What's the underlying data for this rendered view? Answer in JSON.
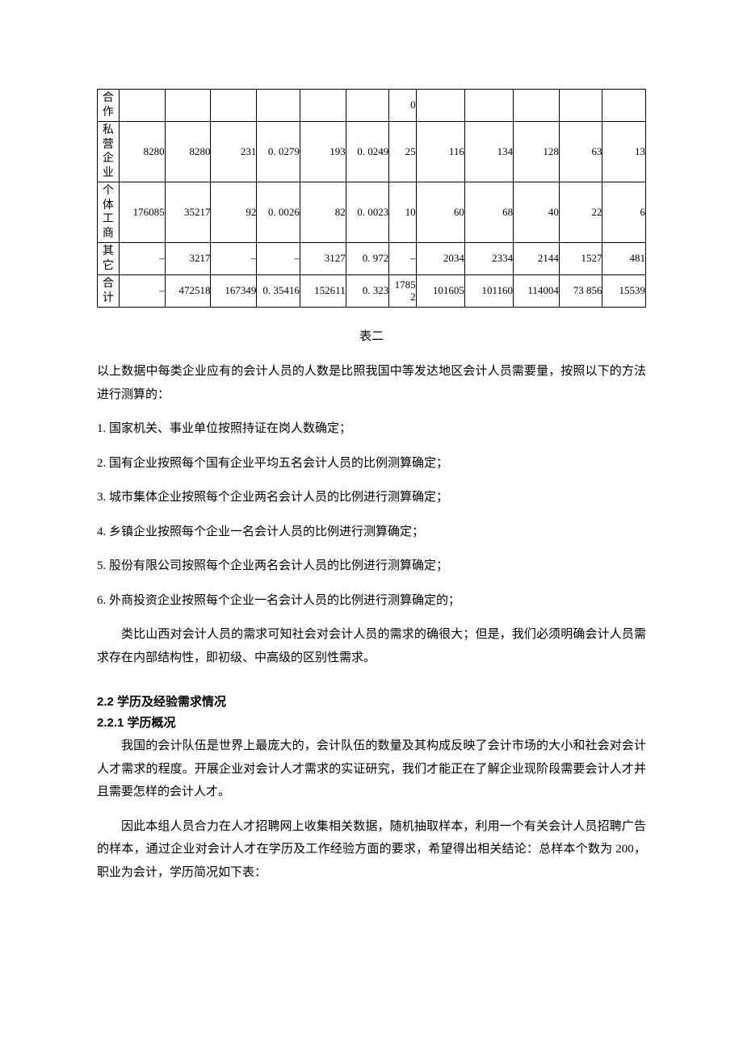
{
  "table": {
    "col_widths_pct": [
      4.0,
      8.5,
      8.5,
      8.5,
      8.0,
      8.5,
      8.0,
      5.0,
      9.0,
      9.0,
      8.5,
      8.0,
      8.0
    ],
    "rows": [
      {
        "head": "合作",
        "cells": [
          "",
          "",
          "",
          "",
          "",
          "",
          "0",
          "",
          "",
          "",
          "",
          ""
        ]
      },
      {
        "head": "私营企业",
        "cells": [
          "8280",
          "8280",
          "231",
          "0. 0279",
          "193",
          "0. 0249",
          "25",
          "116",
          "134",
          "128",
          "63",
          "13"
        ]
      },
      {
        "head": "个体工商",
        "cells": [
          "176085",
          "35217",
          "92",
          "0. 0026",
          "82",
          "0. 0023",
          "10",
          "60",
          "68",
          "40",
          "22",
          "6"
        ]
      },
      {
        "head": "其它",
        "cells": [
          "–",
          "3217",
          "–",
          "–",
          "3127",
          "0. 972",
          "–",
          "2034",
          "2334",
          "2144",
          "1527",
          "481"
        ]
      },
      {
        "head": "合计",
        "cells": [
          "–",
          "472518",
          "167349",
          "0. 35416",
          "152611",
          "0. 323",
          "17852",
          "101605",
          "101160",
          "114004",
          "73 856",
          "15539"
        ]
      }
    ],
    "caption": "表二"
  },
  "body": {
    "intro": "以上数据中每类企业应有的会计人员的人数是比照我国中等发达地区会计人员需要量，按照以下的方法进行测算的：",
    "items": [
      "1. 国家机关、事业单位按照持证在岗人数确定；",
      "2. 国有企业按照每个国有企业平均五名会计人员的比例测算确定；",
      "3. 城市集体企业按照每个企业两名会计人员的比例进行测算确定；",
      "4. 乡镇企业按照每个企业一名会计人员的比例进行测算确定；",
      "5. 股份有限公司按照每个企业两名会计人员的比例进行测算确定；",
      "6. 外商投资企业按照每个企业一名会计人员的比例进行测算确定的；"
    ],
    "conclusion": "类比山西对会计人员的需求可知社会对会计人员的需求的确很大；但是，我们必须明确会计人员需求存在内部结构性，即初级、中高级的区别性需求。"
  },
  "section": {
    "title_22": "2.2 学历及经验需求情况",
    "title_221": "2.2.1 学历概况",
    "p1": "我国的会计队伍是世界上最庞大的，会计队伍的数量及其构成反映了会计市场的大小和社会对会计人才需求的程度。开展企业对会计人才需求的实证研究，我们才能正在了解企业现阶段需要会计人才并且需要怎样的会计人才。",
    "p2": "因此本组人员合力在人才招聘网上收集相关数据，随机抽取样本，利用一个有关会计人员招聘广告的样本，通过企业对会计人才在学历及工作经验方面的要求，希望得出相关结论：总样本个数为 200，职业为会计，学历简况如下表："
  }
}
